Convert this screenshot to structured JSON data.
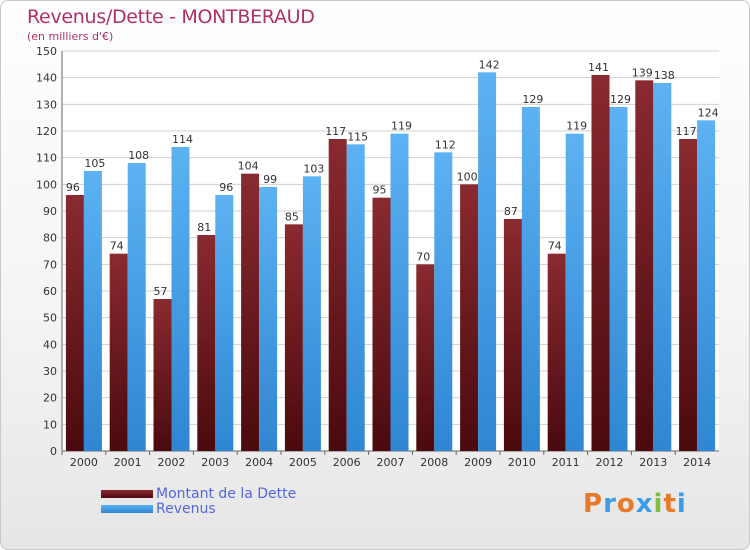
{
  "header": {
    "title": "Revenus/Dette - MONTBERAUD",
    "subtitle": "(en milliers d'€)"
  },
  "chart_data": {
    "type": "bar",
    "categories": [
      "2000",
      "2001",
      "2002",
      "2003",
      "2004",
      "2005",
      "2006",
      "2007",
      "2008",
      "2009",
      "2010",
      "2011",
      "2012",
      "2013",
      "2014"
    ],
    "series": [
      {
        "name": "Montant de la Dette",
        "color": "#6e1a1e",
        "values": [
          96,
          74,
          57,
          81,
          104,
          85,
          117,
          95,
          70,
          100,
          87,
          74,
          141,
          139,
          117
        ]
      },
      {
        "name": "Revenus",
        "color": "#3f9be6",
        "values": [
          105,
          108,
          114,
          96,
          99,
          103,
          115,
          119,
          112,
          142,
          129,
          119,
          129,
          138,
          124
        ]
      }
    ],
    "ylim": [
      0,
      150
    ],
    "yticks": [
      0,
      10,
      20,
      30,
      40,
      50,
      60,
      70,
      80,
      90,
      100,
      110,
      120,
      130,
      140,
      150
    ],
    "grid": true,
    "legend_position": "bottom-left",
    "data_labels": true
  },
  "legend": {
    "items": [
      {
        "label": "Montant de la Dette",
        "color": "#6e1a1e"
      },
      {
        "label": "Revenus",
        "color": "#3f9be6"
      }
    ]
  },
  "branding": {
    "letters": [
      "P",
      "r",
      "o",
      "x",
      "i",
      "t",
      "i"
    ],
    "colors": [
      "#e8782a",
      "#3f9be6",
      "#e8782a",
      "#3f9be6",
      "#7fbf3f",
      "#e8782a",
      "#3f9be6"
    ]
  }
}
